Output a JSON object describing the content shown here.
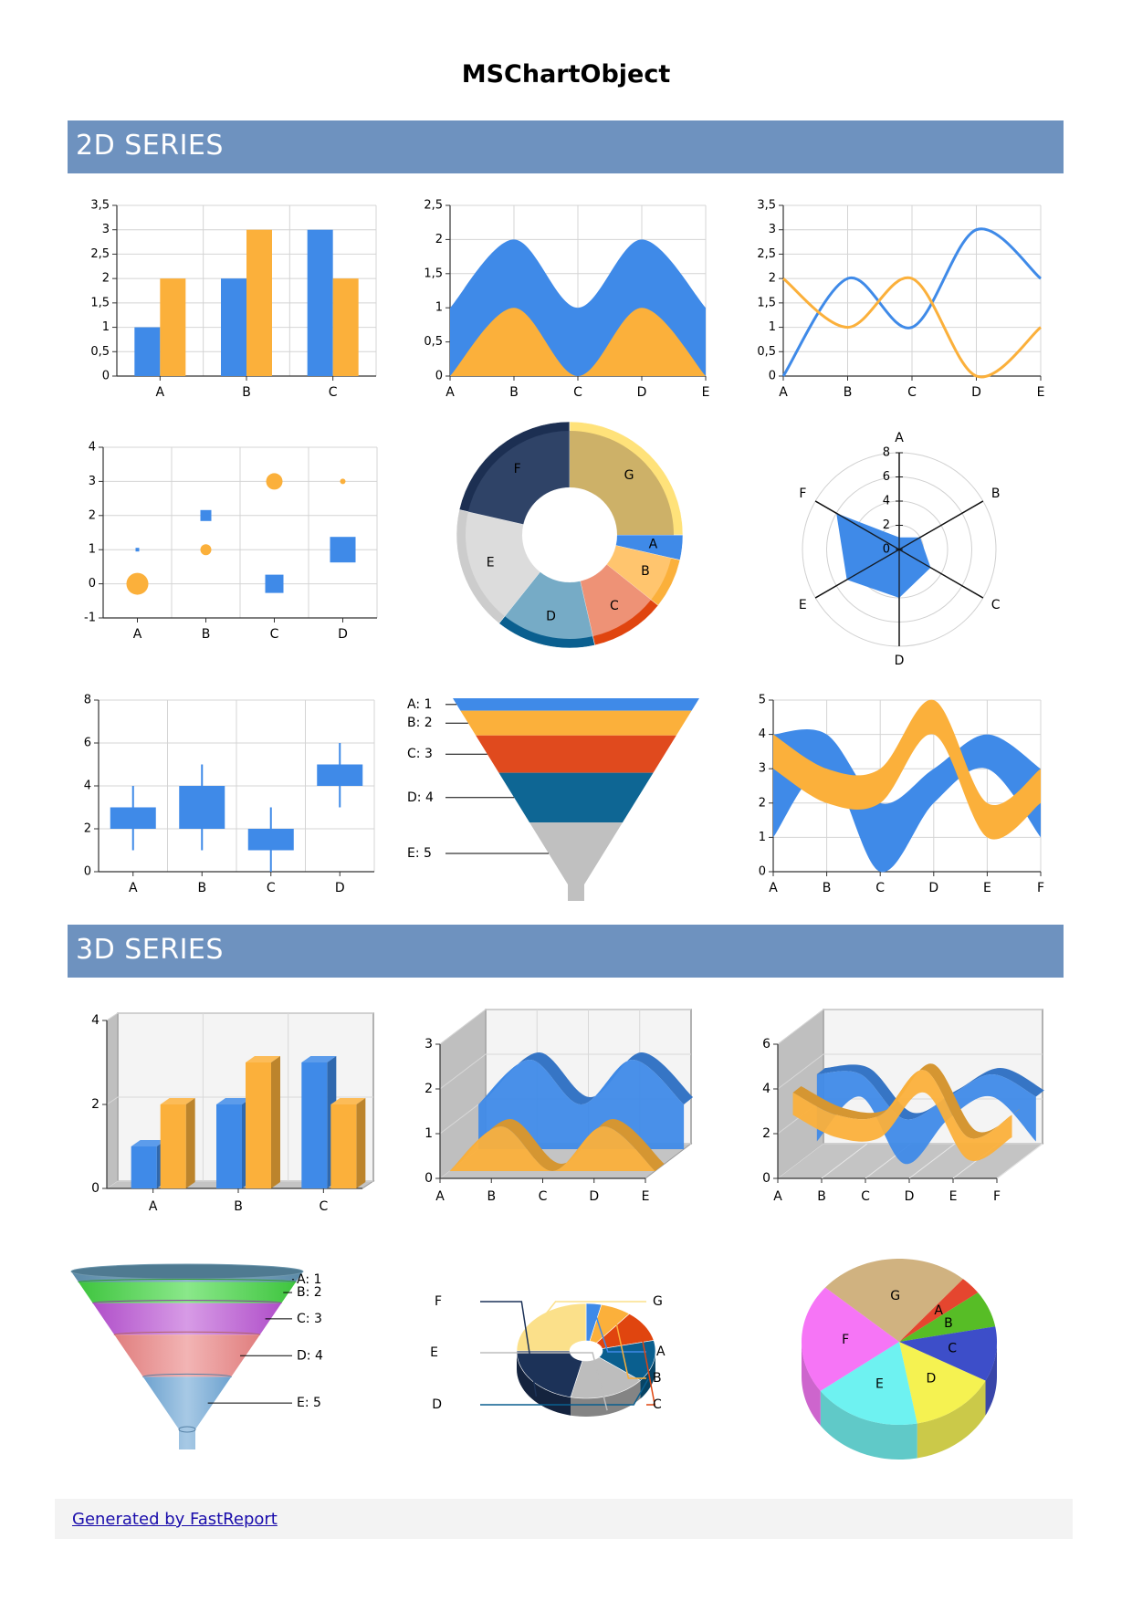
{
  "page": {
    "title": "MSChartObject"
  },
  "sections": {
    "s2d": "2D SERIES",
    "s3d": "3D SERIES"
  },
  "footer": {
    "link_text": "Generated by FastReport"
  },
  "colors": {
    "blue": "#3f8ae8",
    "orange": "#fbb03b",
    "red": "#e04a1e",
    "navy": "#1c3258",
    "teal": "#0e6694",
    "grey": "#c0c0c0",
    "section": "#6e92bf"
  },
  "chart_data": [
    {
      "id": "bar2d",
      "type": "bar",
      "categories": [
        "A",
        "B",
        "C"
      ],
      "series": [
        {
          "values": [
            1,
            2,
            3
          ]
        },
        {
          "values": [
            2,
            3,
            2
          ]
        }
      ],
      "yticks": [
        "0",
        "0,5",
        "1",
        "1,5",
        "2",
        "2,5",
        "3",
        "3,5"
      ],
      "ylim": [
        0,
        3.5
      ]
    },
    {
      "id": "area2d",
      "type": "area",
      "categories": [
        "A",
        "B",
        "C",
        "D",
        "E"
      ],
      "series": [
        {
          "values": [
            1,
            2,
            1,
            2,
            1
          ]
        },
        {
          "values": [
            0,
            1,
            0,
            1,
            0
          ]
        }
      ],
      "yticks": [
        "0",
        "0,5",
        "1",
        "1,5",
        "2",
        "2,5"
      ],
      "ylim": [
        0,
        2.5
      ]
    },
    {
      "id": "line2d",
      "type": "line",
      "categories": [
        "A",
        "B",
        "C",
        "D",
        "E"
      ],
      "series": [
        {
          "values": [
            0,
            2,
            1,
            3,
            2
          ]
        },
        {
          "values": [
            2,
            1,
            2,
            0,
            1
          ]
        }
      ],
      "yticks": [
        "0",
        "0,5",
        "1",
        "1,5",
        "2",
        "2,5",
        "3",
        "3,5"
      ],
      "ylim": [
        0,
        3.5
      ]
    },
    {
      "id": "bubble2d",
      "type": "scatter",
      "categories": [
        "A",
        "B",
        "C",
        "D"
      ],
      "series": [
        {
          "values": [
            1,
            2,
            0,
            1
          ],
          "sizes": [
            1,
            2,
            3,
            4
          ]
        },
        {
          "values": [
            0,
            1,
            3,
            3
          ],
          "sizes": [
            4,
            2,
            3,
            1
          ]
        }
      ],
      "yticks": [
        "-1",
        "0",
        "1",
        "2",
        "3",
        "4"
      ],
      "ylim": [
        -1,
        4
      ]
    },
    {
      "id": "doughnut2d",
      "type": "pie",
      "labels": [
        "A",
        "B",
        "C",
        "D",
        "E",
        "F",
        "G"
      ],
      "values": [
        1,
        2,
        3,
        4,
        5,
        6,
        7
      ]
    },
    {
      "id": "radar2d",
      "type": "radar",
      "labels": [
        "A",
        "B",
        "C",
        "D",
        "E",
        "F"
      ],
      "values": [
        1,
        2,
        3,
        4,
        5,
        6
      ],
      "rticks": [
        "0",
        "2",
        "4",
        "6",
        "8"
      ],
      "rmax": 8
    },
    {
      "id": "stock2d",
      "type": "candlestick",
      "categories": [
        "A",
        "B",
        "C",
        "D"
      ],
      "open": [
        2,
        2,
        1,
        4
      ],
      "close": [
        3,
        4,
        2,
        5
      ],
      "low": [
        1,
        1,
        0,
        3
      ],
      "high": [
        4,
        5,
        3,
        6
      ],
      "yticks": [
        "0",
        "2",
        "4",
        "6",
        "8"
      ],
      "ylim": [
        0,
        8
      ]
    },
    {
      "id": "funnel2d",
      "type": "funnel",
      "labels": [
        "A: 1",
        "B: 2",
        "C: 3",
        "D: 4",
        "E: 5"
      ],
      "values": [
        1,
        2,
        3,
        4,
        5
      ]
    },
    {
      "id": "range2d",
      "type": "area",
      "categories": [
        "A",
        "B",
        "C",
        "D",
        "E",
        "F"
      ],
      "series": [
        {
          "low": [
            1,
            3,
            0,
            2,
            3,
            1
          ],
          "high": [
            4,
            4,
            2,
            3,
            4,
            3
          ]
        },
        {
          "low": [
            3,
            2,
            2,
            4,
            1,
            2
          ],
          "high": [
            4,
            3,
            3,
            5,
            2,
            3
          ]
        }
      ],
      "yticks": [
        "0",
        "1",
        "2",
        "3",
        "4",
        "5"
      ],
      "ylim": [
        0,
        5
      ]
    },
    {
      "id": "bar3d",
      "type": "bar",
      "categories": [
        "A",
        "B",
        "C"
      ],
      "series": [
        {
          "values": [
            1,
            2,
            3
          ]
        },
        {
          "values": [
            2,
            3,
            2
          ]
        }
      ],
      "yticks": [
        "0",
        "2",
        "4"
      ],
      "ylim": [
        0,
        4
      ]
    },
    {
      "id": "area3d",
      "type": "area",
      "categories": [
        "A",
        "B",
        "C",
        "D",
        "E"
      ],
      "series": [
        {
          "values": [
            1,
            2,
            1,
            2,
            1
          ]
        },
        {
          "values": [
            0,
            1,
            0,
            1,
            0
          ]
        }
      ],
      "yticks": [
        "0",
        "1",
        "2",
        "3"
      ],
      "ylim": [
        0,
        3
      ]
    },
    {
      "id": "range3d",
      "type": "area",
      "categories": [
        "A",
        "B",
        "C",
        "D",
        "E",
        "F"
      ],
      "series": [
        {
          "low": [
            1,
            3,
            0,
            2,
            3,
            1
          ],
          "high": [
            4,
            4,
            2,
            3,
            4,
            3
          ]
        },
        {
          "low": [
            3,
            2,
            2,
            4,
            1,
            2
          ],
          "high": [
            4,
            3,
            3,
            5,
            2,
            3
          ]
        }
      ],
      "yticks": [
        "0",
        "2",
        "4",
        "6"
      ],
      "ylim": [
        0,
        6
      ]
    },
    {
      "id": "funnel3d",
      "type": "funnel",
      "labels": [
        "A: 1",
        "B: 2",
        "C: 3",
        "D: 4",
        "E: 5"
      ],
      "values": [
        1,
        2,
        3,
        4,
        5
      ]
    },
    {
      "id": "doughnut3d",
      "type": "pie",
      "labels": [
        "A",
        "B",
        "C",
        "D",
        "E",
        "F",
        "G"
      ],
      "values": [
        1,
        2,
        3,
        4,
        5,
        6,
        7
      ]
    },
    {
      "id": "pie3d",
      "type": "pie",
      "labels": [
        "A",
        "B",
        "C",
        "D",
        "E",
        "F",
        "G"
      ],
      "values": [
        1,
        2,
        3,
        4,
        5,
        6,
        7
      ]
    }
  ]
}
